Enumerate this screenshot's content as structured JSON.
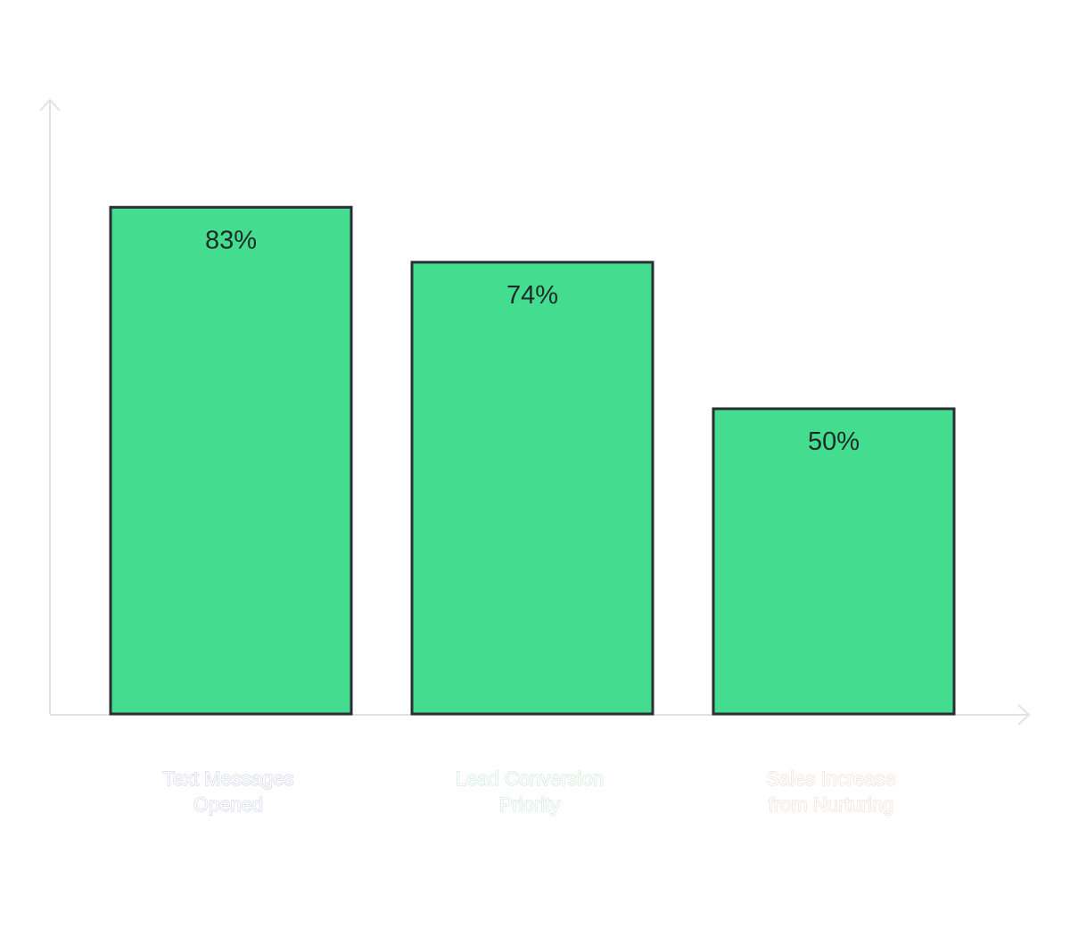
{
  "chart_data": {
    "type": "bar",
    "categories": [
      [
        "Text Messages",
        "Opened"
      ],
      [
        "Lead Conversion",
        "Priority"
      ],
      [
        "Sales Increase",
        "from Nurturing"
      ]
    ],
    "values": [
      83,
      74,
      50
    ],
    "value_labels": [
      "83%",
      "74%",
      "50%"
    ],
    "ylim": [
      0,
      100
    ],
    "grid": false,
    "legend": "none"
  },
  "colors": {
    "bar_fill": "#44dd8f",
    "bar_stroke": "#2a2f33",
    "axis": "#e2e2e2",
    "label_strokes": [
      "#c6c6e6",
      "#bfe3d3",
      "#ead6cb"
    ]
  }
}
